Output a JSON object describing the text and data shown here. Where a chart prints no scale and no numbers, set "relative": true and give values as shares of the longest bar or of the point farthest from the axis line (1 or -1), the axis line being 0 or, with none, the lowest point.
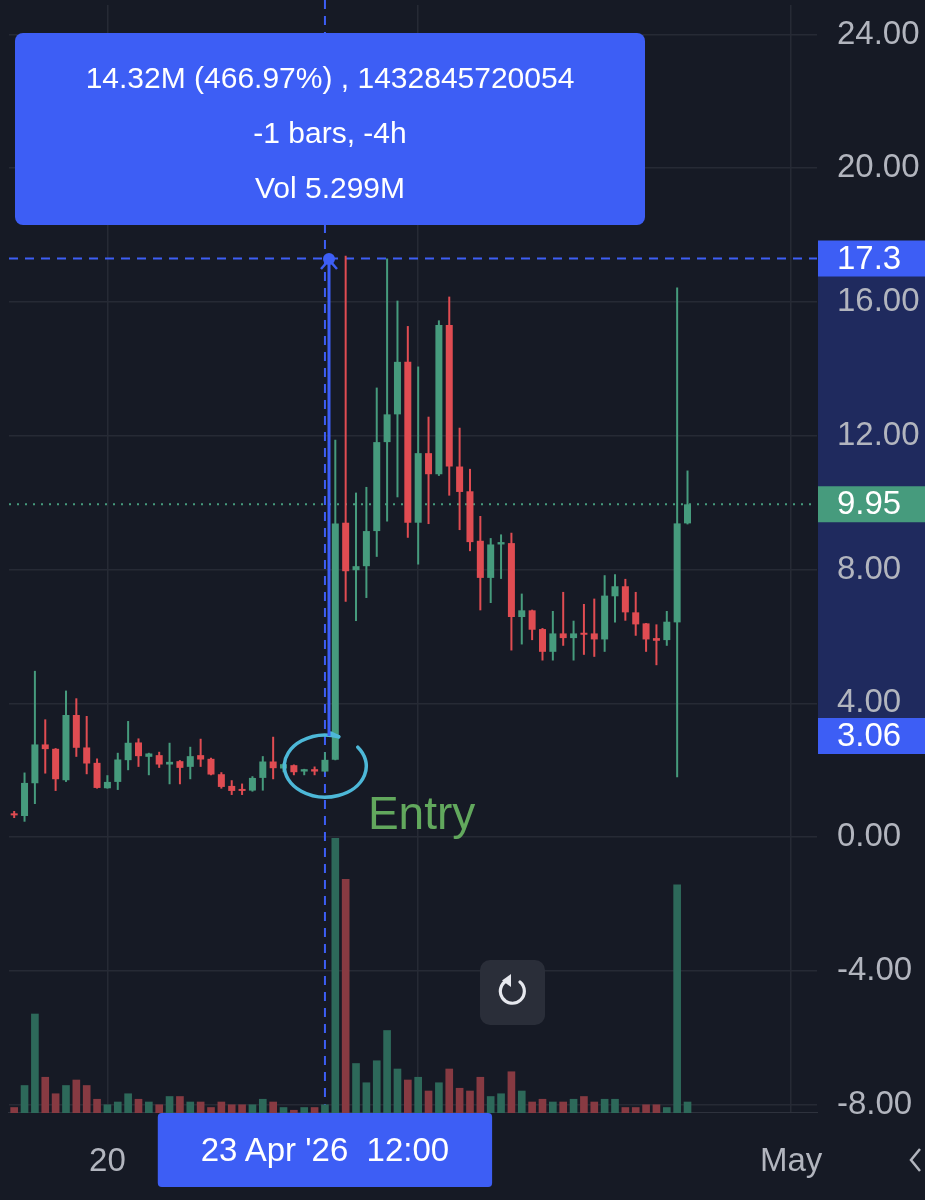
{
  "chart_data": [
    {
      "type": "candlestick",
      "x": [
        "2026-04-18T12:00",
        "2026-04-18T16:00",
        "2026-04-18T20:00",
        "2026-04-19T00:00",
        "2026-04-19T04:00",
        "2026-04-19T08:00",
        "2026-04-19T12:00",
        "2026-04-19T16:00",
        "2026-04-19T20:00",
        "2026-04-20T00:00",
        "2026-04-20T04:00",
        "2026-04-20T08:00",
        "2026-04-20T12:00",
        "2026-04-20T16:00",
        "2026-04-20T20:00",
        "2026-04-21T00:00",
        "2026-04-21T04:00",
        "2026-04-21T08:00",
        "2026-04-21T12:00",
        "2026-04-21T16:00",
        "2026-04-21T20:00",
        "2026-04-22T00:00",
        "2026-04-22T04:00",
        "2026-04-22T08:00",
        "2026-04-22T12:00",
        "2026-04-22T16:00",
        "2026-04-22T20:00",
        "2026-04-23T00:00",
        "2026-04-23T04:00",
        "2026-04-23T08:00",
        "2026-04-23T12:00",
        "2026-04-23T16:00",
        "2026-04-23T20:00",
        "2026-04-24T00:00",
        "2026-04-24T04:00",
        "2026-04-24T08:00",
        "2026-04-24T12:00",
        "2026-04-24T16:00",
        "2026-04-24T20:00",
        "2026-04-25T00:00",
        "2026-04-25T04:00",
        "2026-04-25T08:00",
        "2026-04-25T12:00",
        "2026-04-25T16:00",
        "2026-04-25T20:00",
        "2026-04-26T00:00",
        "2026-04-26T04:00",
        "2026-04-26T08:00",
        "2026-04-26T12:00",
        "2026-04-26T16:00",
        "2026-04-26T20:00",
        "2026-04-27T00:00",
        "2026-04-27T04:00",
        "2026-04-27T08:00",
        "2026-04-27T12:00",
        "2026-04-27T16:00",
        "2026-04-27T20:00",
        "2026-04-28T00:00",
        "2026-04-28T04:00",
        "2026-04-28T08:00",
        "2026-04-28T12:00",
        "2026-04-28T16:00",
        "2026-04-28T20:00",
        "2026-04-29T00:00",
        "2026-04-29T04:00",
        "2026-04-29T08:00"
      ],
      "ohlc": [
        [
          0.71,
          0.78,
          0.57,
          0.65
        ],
        [
          0.63,
          1.93,
          0.46,
          1.62
        ],
        [
          1.61,
          4.97,
          0.99,
          2.77
        ],
        [
          2.77,
          3.52,
          1.9,
          2.63
        ],
        [
          2.64,
          2.66,
          1.38,
          1.73
        ],
        [
          1.7,
          4.38,
          1.65,
          3.65
        ],
        [
          3.65,
          4.15,
          2.4,
          2.67
        ],
        [
          2.68,
          3.62,
          1.88,
          2.2
        ],
        [
          2.22,
          2.35,
          1.45,
          1.47
        ],
        [
          1.46,
          1.85,
          1.45,
          1.65
        ],
        [
          1.65,
          2.52,
          1.41,
          2.32
        ],
        [
          2.3,
          3.47,
          2.0,
          2.82
        ],
        [
          2.83,
          2.95,
          2.1,
          2.42
        ],
        [
          2.4,
          2.52,
          1.85,
          2.5
        ],
        [
          2.45,
          2.55,
          2.07,
          2.17
        ],
        [
          2.17,
          2.82,
          1.58,
          2.25
        ],
        [
          2.27,
          2.3,
          1.58,
          2.07
        ],
        [
          2.1,
          2.7,
          1.73,
          2.42
        ],
        [
          2.45,
          2.94,
          2.1,
          2.32
        ],
        [
          2.34,
          2.37,
          1.85,
          1.87
        ],
        [
          1.88,
          1.94,
          1.45,
          1.5
        ],
        [
          1.53,
          1.7,
          1.26,
          1.38
        ],
        [
          1.44,
          1.6,
          1.26,
          1.38
        ],
        [
          1.39,
          1.82,
          1.36,
          1.77
        ],
        [
          1.77,
          2.42,
          1.39,
          2.26
        ],
        [
          2.26,
          3.0,
          1.73,
          2.06
        ],
        [
          2.05,
          2.2,
          1.94,
          2.18
        ],
        [
          2.15,
          2.17,
          1.85,
          1.94
        ],
        [
          1.96,
          2.04,
          1.85,
          2.03
        ],
        [
          2.03,
          2.11,
          1.85,
          1.96
        ],
        [
          1.96,
          2.54,
          1.94,
          2.31
        ],
        [
          2.31,
          11.88,
          2.3,
          9.38
        ],
        [
          9.4,
          17.38,
          7.04,
          7.95
        ],
        [
          7.98,
          10.3,
          6.46,
          8.1
        ],
        [
          8.1,
          10.47,
          7.15,
          9.15
        ],
        [
          9.15,
          13.44,
          8.38,
          11.81
        ],
        [
          11.81,
          17.3,
          9.44,
          12.64
        ],
        [
          12.64,
          16.04,
          10.16,
          14.21
        ],
        [
          14.21,
          15.28,
          8.95,
          9.4
        ],
        [
          9.4,
          14.07,
          8.15,
          11.48
        ],
        [
          11.48,
          12.57,
          9.36,
          10.85
        ],
        [
          10.85,
          15.45,
          10.8,
          15.31
        ],
        [
          15.31,
          16.16,
          10.21,
          11.08
        ],
        [
          11.08,
          12.24,
          9.18,
          10.32
        ],
        [
          10.34,
          11.01,
          8.55,
          8.82
        ],
        [
          8.86,
          9.6,
          6.78,
          7.75
        ],
        [
          7.75,
          8.94,
          7.0,
          8.75
        ],
        [
          8.75,
          9.05,
          7.72,
          8.82
        ],
        [
          8.79,
          9.1,
          5.58,
          6.58
        ],
        [
          6.58,
          7.28,
          5.76,
          6.78
        ],
        [
          6.78,
          6.8,
          5.89,
          6.2
        ],
        [
          6.22,
          6.25,
          5.28,
          5.54
        ],
        [
          5.54,
          6.76,
          5.28,
          6.09
        ],
        [
          6.09,
          7.33,
          5.72,
          5.95
        ],
        [
          5.95,
          6.47,
          5.28,
          6.09
        ],
        [
          6.11,
          6.97,
          5.45,
          6.05
        ],
        [
          6.09,
          7.13,
          5.39,
          5.91
        ],
        [
          5.91,
          7.83,
          5.54,
          7.22
        ],
        [
          7.2,
          7.86,
          6.42,
          7.5
        ],
        [
          7.5,
          7.72,
          6.47,
          6.72
        ],
        [
          6.72,
          7.33,
          6.02,
          6.36
        ],
        [
          6.39,
          6.4,
          5.54,
          5.91
        ],
        [
          5.95,
          6.36,
          5.14,
          5.87
        ],
        [
          5.89,
          6.76,
          5.72,
          6.44
        ],
        [
          6.42,
          16.43,
          1.79,
          9.38
        ],
        [
          9.38,
          10.96,
          9.35,
          9.95
        ]
      ],
      "colors": [
        "#e04c52",
        "#469b7d",
        "#469b7d",
        "#e04c52",
        "#e04c52",
        "#469b7d",
        "#e04c52",
        "#e04c52",
        "#e04c52",
        "#469b7d",
        "#469b7d",
        "#469b7d",
        "#e04c52",
        "#469b7d",
        "#e04c52",
        "#469b7d",
        "#e04c52",
        "#469b7d",
        "#e04c52",
        "#e04c52",
        "#e04c52",
        "#e04c52",
        "#e04c52",
        "#469b7d",
        "#469b7d",
        "#e04c52",
        "#469b7d",
        "#e04c52",
        "#469b7d",
        "#e04c52",
        "#469b7d",
        "#469b7d",
        "#e04c52",
        "#469b7d",
        "#469b7d",
        "#469b7d",
        "#469b7d",
        "#469b7d",
        "#e04c52",
        "#469b7d",
        "#e04c52",
        "#469b7d",
        "#e04c52",
        "#e04c52",
        "#e04c52",
        "#e04c52",
        "#469b7d",
        "#469b7d",
        "#e04c52",
        "#469b7d",
        "#e04c52",
        "#e04c52",
        "#469b7d",
        "#e04c52",
        "#469b7d",
        "#e04c52",
        "#e04c52",
        "#469b7d",
        "#469b7d",
        "#e04c52",
        "#e04c52",
        "#e04c52",
        "#e04c52",
        "#469b7d",
        "#469b7d",
        "#469b7d"
      ],
      "xlim": [
        "2026-04-18T10:00",
        "2026-05-01T10:00"
      ],
      "xticks": [
        {
          "value": "2026-04-20",
          "label": "20"
        },
        {
          "value": "2026-04-25",
          "label": null
        },
        {
          "value": "2026-05-01",
          "label": "May"
        }
      ],
      "ylim": [
        -8.22,
        24.88
      ],
      "yticks": [
        {
          "value": -8,
          "label": "-8.00"
        },
        {
          "value": -4,
          "label": "-4.00"
        },
        {
          "value": 0,
          "label": "0.00"
        },
        {
          "value": 4,
          "label": "4.00"
        },
        {
          "value": 8,
          "label": "8.00"
        },
        {
          "value": 12,
          "label": "12.00"
        },
        {
          "value": 16,
          "label": "16.00"
        },
        {
          "value": 20,
          "label": "20.00"
        },
        {
          "value": 24,
          "label": "24.00"
        }
      ],
      "grid": true,
      "ref_lines": [
        {
          "axis": "x",
          "value": "2026-04-23T12:00",
          "label": "23 Apr '26  12:00",
          "color": "#3d5ef5",
          "line_style": "dashed"
        },
        {
          "axis": "y",
          "value": 17.3,
          "label": "17.3",
          "color": "#3d5ef5",
          "line_style": "dashed"
        },
        {
          "axis": "y",
          "value": 9.95,
          "label": "9.95",
          "color": "#469b7d",
          "line_style": "dotted"
        }
      ],
      "annotations": [
        "14.32M (466.97%) , 1432845720054",
        "-1 bars, -4h",
        "Vol 5.299M",
        {
          "text": "Entry",
          "x": "2026-04-23T12:00",
          "y": 2.15
        },
        "3.06"
      ]
    },
    {
      "type": "bar",
      "relative": true,
      "tick_labels": false,
      "x": [
        "2026-04-18T12:00",
        "2026-04-18T16:00",
        "2026-04-18T20:00",
        "2026-04-19T00:00",
        "2026-04-19T04:00",
        "2026-04-19T08:00",
        "2026-04-19T12:00",
        "2026-04-19T16:00",
        "2026-04-19T20:00",
        "2026-04-20T00:00",
        "2026-04-20T04:00",
        "2026-04-20T08:00",
        "2026-04-20T12:00",
        "2026-04-20T16:00",
        "2026-04-20T20:00",
        "2026-04-21T00:00",
        "2026-04-21T04:00",
        "2026-04-21T08:00",
        "2026-04-21T12:00",
        "2026-04-21T16:00",
        "2026-04-21T20:00",
        "2026-04-22T00:00",
        "2026-04-22T04:00",
        "2026-04-22T08:00",
        "2026-04-22T12:00",
        "2026-04-22T16:00",
        "2026-04-22T20:00",
        "2026-04-23T00:00",
        "2026-04-23T04:00",
        "2026-04-23T08:00",
        "2026-04-23T12:00",
        "2026-04-23T16:00",
        "2026-04-23T20:00",
        "2026-04-24T00:00",
        "2026-04-24T04:00",
        "2026-04-24T08:00",
        "2026-04-24T12:00",
        "2026-04-24T16:00",
        "2026-04-24T20:00",
        "2026-04-25T00:00",
        "2026-04-25T04:00",
        "2026-04-25T08:00",
        "2026-04-25T12:00",
        "2026-04-25T16:00",
        "2026-04-25T20:00",
        "2026-04-26T00:00",
        "2026-04-26T04:00",
        "2026-04-26T08:00",
        "2026-04-26T12:00",
        "2026-04-26T16:00",
        "2026-04-26T20:00",
        "2026-04-27T00:00",
        "2026-04-27T04:00",
        "2026-04-27T08:00",
        "2026-04-27T12:00",
        "2026-04-27T16:00",
        "2026-04-27T20:00",
        "2026-04-28T00:00",
        "2026-04-28T04:00",
        "2026-04-28T08:00",
        "2026-04-28T12:00",
        "2026-04-28T16:00",
        "2026-04-28T20:00",
        "2026-04-29T00:00",
        "2026-04-29T04:00",
        "2026-04-29T08:00"
      ],
      "xlim": [
        "2026-04-18T10:00",
        "2026-05-01T10:00"
      ],
      "values": [
        0.02,
        0.1,
        0.36,
        0.13,
        0.07,
        0.1,
        0.12,
        0.1,
        0.05,
        0.03,
        0.04,
        0.07,
        0.05,
        0.04,
        0.03,
        0.06,
        0.06,
        0.04,
        0.04,
        0.02,
        0.04,
        0.03,
        0.03,
        0.03,
        0.05,
        0.04,
        0.02,
        0.01,
        0.02,
        0.02,
        0.03,
        1,
        0.85,
        0.18,
        0.11,
        0.19,
        0.3,
        0.16,
        0.12,
        0.13,
        0.08,
        0.11,
        0.16,
        0.09,
        0.08,
        0.13,
        0.06,
        0.07,
        0.15,
        0.08,
        0.04,
        0.05,
        0.04,
        0.04,
        0.05,
        0.06,
        0.04,
        0.05,
        0.05,
        0.02,
        0.02,
        0.03,
        0.03,
        0.02,
        0.83,
        0.04
      ],
      "colors": [
        "#873a42",
        "#2d695a",
        "#2d695a",
        "#873a42",
        "#873a42",
        "#2d695a",
        "#873a42",
        "#873a42",
        "#873a42",
        "#2d695a",
        "#2d695a",
        "#2d695a",
        "#873a42",
        "#2d695a",
        "#873a42",
        "#2d695a",
        "#873a42",
        "#2d695a",
        "#873a42",
        "#873a42",
        "#873a42",
        "#873a42",
        "#873a42",
        "#2d695a",
        "#2d695a",
        "#873a42",
        "#2d695a",
        "#873a42",
        "#2d695a",
        "#873a42",
        "#2d695a",
        "#2d695a",
        "#873a42",
        "#2d695a",
        "#2d695a",
        "#2d695a",
        "#2d695a",
        "#2d695a",
        "#873a42",
        "#2d695a",
        "#873a42",
        "#2d695a",
        "#873a42",
        "#873a42",
        "#873a42",
        "#873a42",
        "#2d695a",
        "#2d695a",
        "#873a42",
        "#2d695a",
        "#873a42",
        "#873a42",
        "#2d695a",
        "#873a42",
        "#2d695a",
        "#873a42",
        "#873a42",
        "#2d695a",
        "#2d695a",
        "#873a42",
        "#873a42",
        "#873a42",
        "#873a42",
        "#2d695a",
        "#2d695a",
        "#2d695a"
      ]
    }
  ]
}
